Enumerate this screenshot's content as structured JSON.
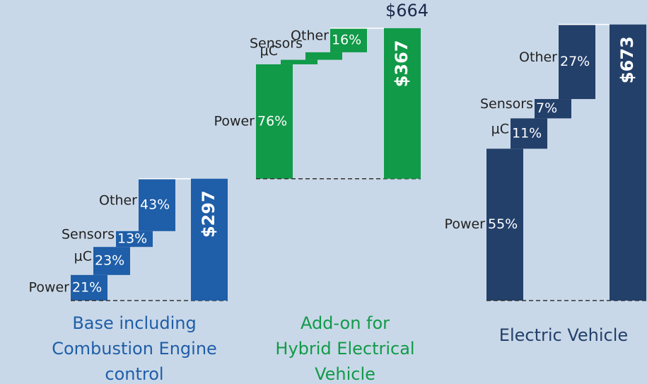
{
  "chart_data": [
    {
      "type": "waterfall",
      "title": "Base including Combustion Engine control",
      "color": "#1f5ea8",
      "categories": [
        "Power",
        "μC",
        "Sensors",
        "Other"
      ],
      "values": [
        21,
        23,
        13,
        43
      ],
      "value_labels": [
        "21%",
        "23%",
        "13%",
        "43%"
      ],
      "total": {
        "value": 297,
        "label": "$297"
      }
    },
    {
      "type": "waterfall",
      "title": "Add-on for Hybrid Electrical Vehicle",
      "color": "#119a48",
      "stacks_on_previous": true,
      "categories": [
        "Power",
        "μC",
        "Sensors",
        "Other"
      ],
      "values": [
        76,
        3,
        5,
        16
      ],
      "value_labels": [
        "76%",
        null,
        null,
        "16%"
      ],
      "total": {
        "value": 367,
        "label": "$367"
      },
      "grand_total": {
        "value": 664,
        "label": "$664"
      }
    },
    {
      "type": "waterfall",
      "title": "Electric Vehicle",
      "color": "#23406a",
      "categories": [
        "Power",
        "μC",
        "Sensors",
        "Other"
      ],
      "values": [
        55,
        11,
        7,
        27
      ],
      "value_labels": [
        "55%",
        "11%",
        "7%",
        "27%"
      ],
      "total": {
        "value": 673,
        "label": "$673"
      }
    }
  ]
}
